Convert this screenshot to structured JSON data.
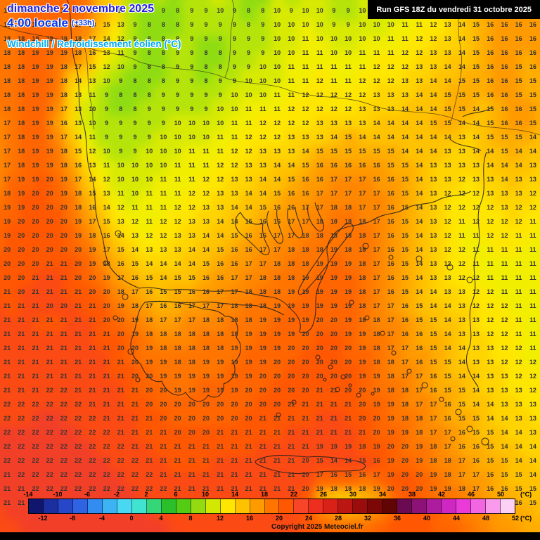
{
  "header": {
    "date": "dimanche 2 novembre 2025",
    "time": "4:00 locale",
    "offset": "(+33h)",
    "parameter": "Windchill / Refroidissement éolien (°C)",
    "run": "Run GFS 18Z du vendredi 31 octobre 2025"
  },
  "footer": {
    "copyright": "Copyright 2025 Meteociel.fr"
  },
  "colors": {
    "date_text": "#2222dd",
    "time_text": "#0836e6",
    "parameter_text": "#00aaf0",
    "run_box_bg": "#000000",
    "run_box_text": "#ffffff",
    "number_text": "#333333"
  },
  "legend": {
    "unit": "(°C)",
    "top_labels": [
      "-14",
      "-10",
      "-6",
      "-2",
      "2",
      "6",
      "10",
      "14",
      "18",
      "22",
      "26",
      "30",
      "34",
      "38",
      "42",
      "46",
      "50"
    ],
    "bottom_labels": [
      "-12",
      "-8",
      "-4",
      "0",
      "4",
      "8",
      "12",
      "16",
      "20",
      "24",
      "28",
      "32",
      "36",
      "40",
      "44",
      "48",
      "52"
    ],
    "colors": [
      "#10166e",
      "#1c2f9e",
      "#2547c8",
      "#2e63e4",
      "#338cf0",
      "#3cb4f4",
      "#48d8f2",
      "#3fe3cf",
      "#35d678",
      "#2cbf2c",
      "#55cc14",
      "#94da10",
      "#d2e802",
      "#ffe600",
      "#ffc200",
      "#ff9a00",
      "#ff7500",
      "#ff5702",
      "#f8452a",
      "#ee2e1e",
      "#d92117",
      "#bb1612",
      "#9b0d0d",
      "#7c0707",
      "#600404",
      "#6b0a52",
      "#8c1278",
      "#ad1b9e",
      "#cf27c2",
      "#e83bd8",
      "#f266e2",
      "#f99aec",
      "#fdd0f6"
    ]
  },
  "map_colors": {
    "4": "#2bb513",
    "5": "#3cc015",
    "6": "#52c818",
    "7": "#6ed31c",
    "8": "#8fdc12",
    "9": "#b4e40a",
    "10": "#d8ea02",
    "11": "#f2ee00",
    "12": "#ffe600",
    "13": "#ffd400",
    "14": "#ffc200",
    "15": "#ffae00",
    "16": "#ff9a00",
    "17": "#ff8700",
    "18": "#ff7500",
    "19": "#ff6500",
    "20": "#ff5702",
    "21": "#fb4a14",
    "22": "#f23f28"
  },
  "chart_data": {
    "type": "heatmap",
    "title": "Windchill / Refroidissement éolien (°C)",
    "model_run": "Run GFS 18Z du vendredi 31 octobre 2025",
    "valid_time": "dimanche 2 novembre 2025 4:00 locale (+33h)",
    "unit": "°C",
    "scale_range": [
      -14,
      52
    ],
    "scale_step": 2,
    "cols": 38,
    "rows": 36,
    "values": [
      "18 18 18 19 19 19 18 14 13 9 8 9 8 9 9 10 9 8 8 10 9 10 10 9 9 10 9 10 10 11 12 13 14 15 16 15 16 16",
      "18 18 19 19 19 19 18 15 13 9 8 8 8 9 9 9 9 8 9 10 10 10 10 9 9 10 10 10 11 11 12 13 14 15 16 16 16 16",
      "18 18 19 19 19 18 17 14 12 9 8 8 8 9 9 9 9 9 9 10 10 11 10 10 10 10 10 11 11 12 12 13 14 15 16 16 16 16",
      "18 18 19 19 19 18 16 13 11 9 8 8 9 9 8 8 9 9 9 10 10 11 11 10 10 11 11 11 12 12 13 13 14 15 16 16 16 16",
      "18 18 19 19 18 17 15 12 10 9 8 8 9 9 8 8 9 9 10 10 11 11 11 11 11 11 12 12 12 13 13 14 14 15 16 16 15 16",
      "18 18 19 19 18 14 13 10 9 8 8 8 9 9 8 9 9 10 10 10 11 11 12 11 11 12 12 12 13 13 14 14 15 15 16 16 15 15",
      "18 18 19 19 18 13 11 9 8 8 8 9 9 9 9 9 10 10 10 11 11 12 12 12 12 12 13 13 13 14 14 15 15 15 16 16 15 15",
      "18 18 19 19 17 13 10 9 8 8 9 9 9 9 9 10 10 11 11 11 12 12 12 12 12 13 13 13 14 14 14 15 15 14 15 16 16 15",
      "17 18 19 19 16 13 10 9 9 9 9 9 10 10 10 10 11 11 12 12 12 12 13 13 13 13 14 14 14 14 15 15 14 14 15 16 16 15",
      "17 18 19 19 17 14 11 9 9 9 9 10 10 10 10 11 11 12 12 12 13 13 13 14 15 14 14 14 14 14 14 14 13 14 15 15 15 14",
      "17 18 19 19 18 15 12 10 9 9 10 10 10 11 11 11 12 12 13 13 13 14 15 15 15 15 15 15 14 14 14 13 13 14 14 15 14 14",
      "17 18 19 19 18 16 13 11 10 10 10 10 11 11 11 12 12 13 13 14 14 15 16 16 16 16 16 15 15 14 13 13 13 13 14 14 14 13",
      "17 19 19 20 19 17 14 12 10 10 10 11 11 11 12 12 13 13 14 14 15 16 16 17 17 17 16 16 15 14 13 13 12 13 13 14 13 13",
      "18 19 20 20 19 18 15 13 11 10 11 11 11 12 12 13 13 14 14 15 16 16 17 17 17 17 17 16 15 14 13 12 12 12 13 13 13 12",
      "19 19 20 20 20 18 16 14 12 11 11 11 12 12 13 13 14 14 15 16 16 17 17 18 18 17 17 16 15 14 13 12 12 12 12 13 12 12",
      "19 20 20 20 20 19 17 15 13 12 11 12 12 13 13 14 14 15 16 16 17 17 18 18 18 18 17 16 15 14 13 12 11 12 12 12 12 11",
      "19 20 20 20 20 19 18 16 14 13 12 12 13 13 14 14 15 16 16 17 17 18 18 18 18 18 17 16 15 14 13 12 11 11 12 12 11 11",
      "20 20 20 20 20 20 19 17 15 14 13 13 13 14 14 15 16 16 17 17 18 18 18 19 18 18 17 16 15 14 13 12 12 11 11 11 11 11",
      "20 20 20 21 21 20 19 18 16 15 14 14 14 14 15 16 16 17 17 18 18 18 19 19 19 18 17 16 15 14 13 12 12 11 11 11 11 11",
      "20 20 21 21 21 20 20 19 17 16 15 14 15 15 16 16 17 17 18 18 18 19 19 19 19 18 17 16 15 14 13 13 12 12 11 11 11 11",
      "21 20 21 21 21 21 20 20 18 17 16 15 15 16 16 17 17 18 18 18 19 19 19 19 19 18 17 16 15 14 14 13 13 12 12 11 11 11",
      "21 21 21 20 20 21 21 20 19 18 17 16 16 17 17 17 18 18 18 19 19 19 19 19 19 18 17 17 16 15 14 14 13 12 12 12 11 11",
      "21 21 21 21 21 21 21 20 20 19 18 17 17 17 18 18 18 18 19 19 19 19 20 20 19 18 18 17 16 15 15 14 13 13 12 12 11 11",
      "21 21 21 21 21 21 21 21 20 19 18 18 18 18 18 18 18 19 19 19 19 20 20 20 19 19 18 17 16 16 15 14 13 13 12 12 11 11",
      "21 21 21 21 21 21 21 21 20 20 19 18 18 18 18 18 19 19 19 19 20 20 20 20 20 19 18 17 17 16 15 14 14 13 13 12 12 11",
      "21 21 21 21 21 21 21 21 21 20 19 19 18 18 19 19 19 19 19 20 20 20 20 20 20 19 18 18 17 16 15 15 14 13 13 12 12 12",
      "21 21 21 21 21 21 21 21 21 20 20 19 19 19 19 19 19 19 20 20 20 20 20 20 20 19 19 18 17 17 16 15 14 14 13 13 12 12",
      "21 21 21 22 22 21 21 21 21 21 20 20 19 19 19 19 19 20 20 20 20 20 21 21 20 20 19 18 18 17 16 15 15 14 13 13 13 12",
      "22 22 22 22 22 22 21 21 21 21 20 20 20 20 20 20 20 20 20 20 21 21 21 21 21 20 19 19 18 17 17 16 15 14 14 13 13 13",
      "22 22 22 22 22 22 22 21 21 21 21 20 20 20 20 20 20 20 21 21 21 21 21 21 21 20 20 19 18 18 17 16 15 15 14 14 13 13",
      "22 22 22 22 22 22 22 22 21 21 21 21 20 20 20 21 21 21 21 21 21 21 21 21 21 21 20 19 19 18 17 17 16 15 15 14 14 13",
      "22 22 22 22 22 22 22 22 22 21 21 21 21 21 21 21 21 21 21 21 21 21 19 19 19 18 19 20 20 19 18 17 16 16 15 14 14 14",
      "22 22 22 22 22 22 22 22 22 22 21 21 21 21 21 21 21 21 21 21 21 20 15 14 14 15 16 19 20 19 18 18 17 16 15 15 14 14",
      "21 22 22 22 22 22 22 22 22 22 22 21 21 21 21 21 21 21 21 21 21 20 17 16 15 16 17 19 20 20 19 18 17 17 16 15 15 14",
      "21 21 22 22 22 22 22 22 22 22 22 22 21 21 21 21 21 21 21 21 21 20 19 18 18 18 19 20 20 20 19 19 18 17 16 16 15 15",
      "21 21 21 22 22 22 22 22 22 22 22 22 22 21 21 21 21 21 21 21 21 21 20 20 19 20 20 20 20 20 20 19 18 18 17 16 16 15"
    ]
  }
}
